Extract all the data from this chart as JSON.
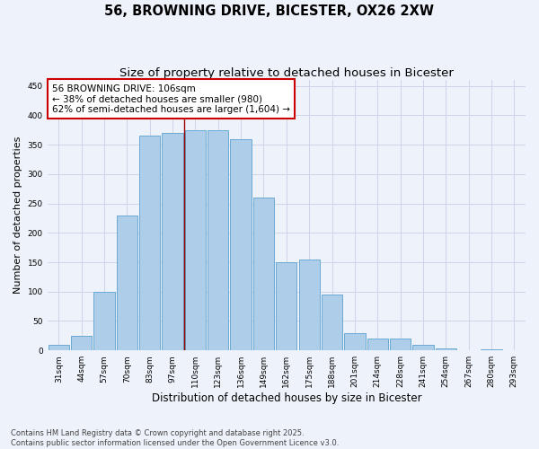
{
  "title": "56, BROWNING DRIVE, BICESTER, OX26 2XW",
  "subtitle": "Size of property relative to detached houses in Bicester",
  "xlabel": "Distribution of detached houses by size in Bicester",
  "ylabel": "Number of detached properties",
  "bin_labels": [
    "31sqm",
    "44sqm",
    "57sqm",
    "70sqm",
    "83sqm",
    "97sqm",
    "110sqm",
    "123sqm",
    "136sqm",
    "149sqm",
    "162sqm",
    "175sqm",
    "188sqm",
    "201sqm",
    "214sqm",
    "228sqm",
    "241sqm",
    "254sqm",
    "267sqm",
    "280sqm",
    "293sqm"
  ],
  "bar_heights": [
    10,
    25,
    100,
    230,
    365,
    370,
    375,
    375,
    360,
    260,
    150,
    155,
    95,
    30,
    20,
    20,
    10,
    3,
    0,
    2,
    0
  ],
  "bar_color": "#aecde8",
  "bar_edge_color": "#6aaad4",
  "vline_index": 6,
  "vline_color": "#990000",
  "annotation_text": "56 BROWNING DRIVE: 106sqm\n← 38% of detached houses are smaller (980)\n62% of semi-detached houses are larger (1,604) →",
  "annotation_box_color": "#ffffff",
  "annotation_box_edge": "#cc0000",
  "ylim": [
    0,
    460
  ],
  "yticks": [
    0,
    50,
    100,
    150,
    200,
    250,
    300,
    350,
    400,
    450
  ],
  "background_color": "#eef2fa",
  "grid_color": "#ccd6e8",
  "footer_text": "Contains HM Land Registry data © Crown copyright and database right 2025.\nContains public sector information licensed under the Open Government Licence v3.0.",
  "title_fontsize": 10.5,
  "subtitle_fontsize": 9.5,
  "xlabel_fontsize": 8.5,
  "ylabel_fontsize": 8,
  "tick_fontsize": 6.5,
  "annotation_fontsize": 7.5,
  "footer_fontsize": 6
}
